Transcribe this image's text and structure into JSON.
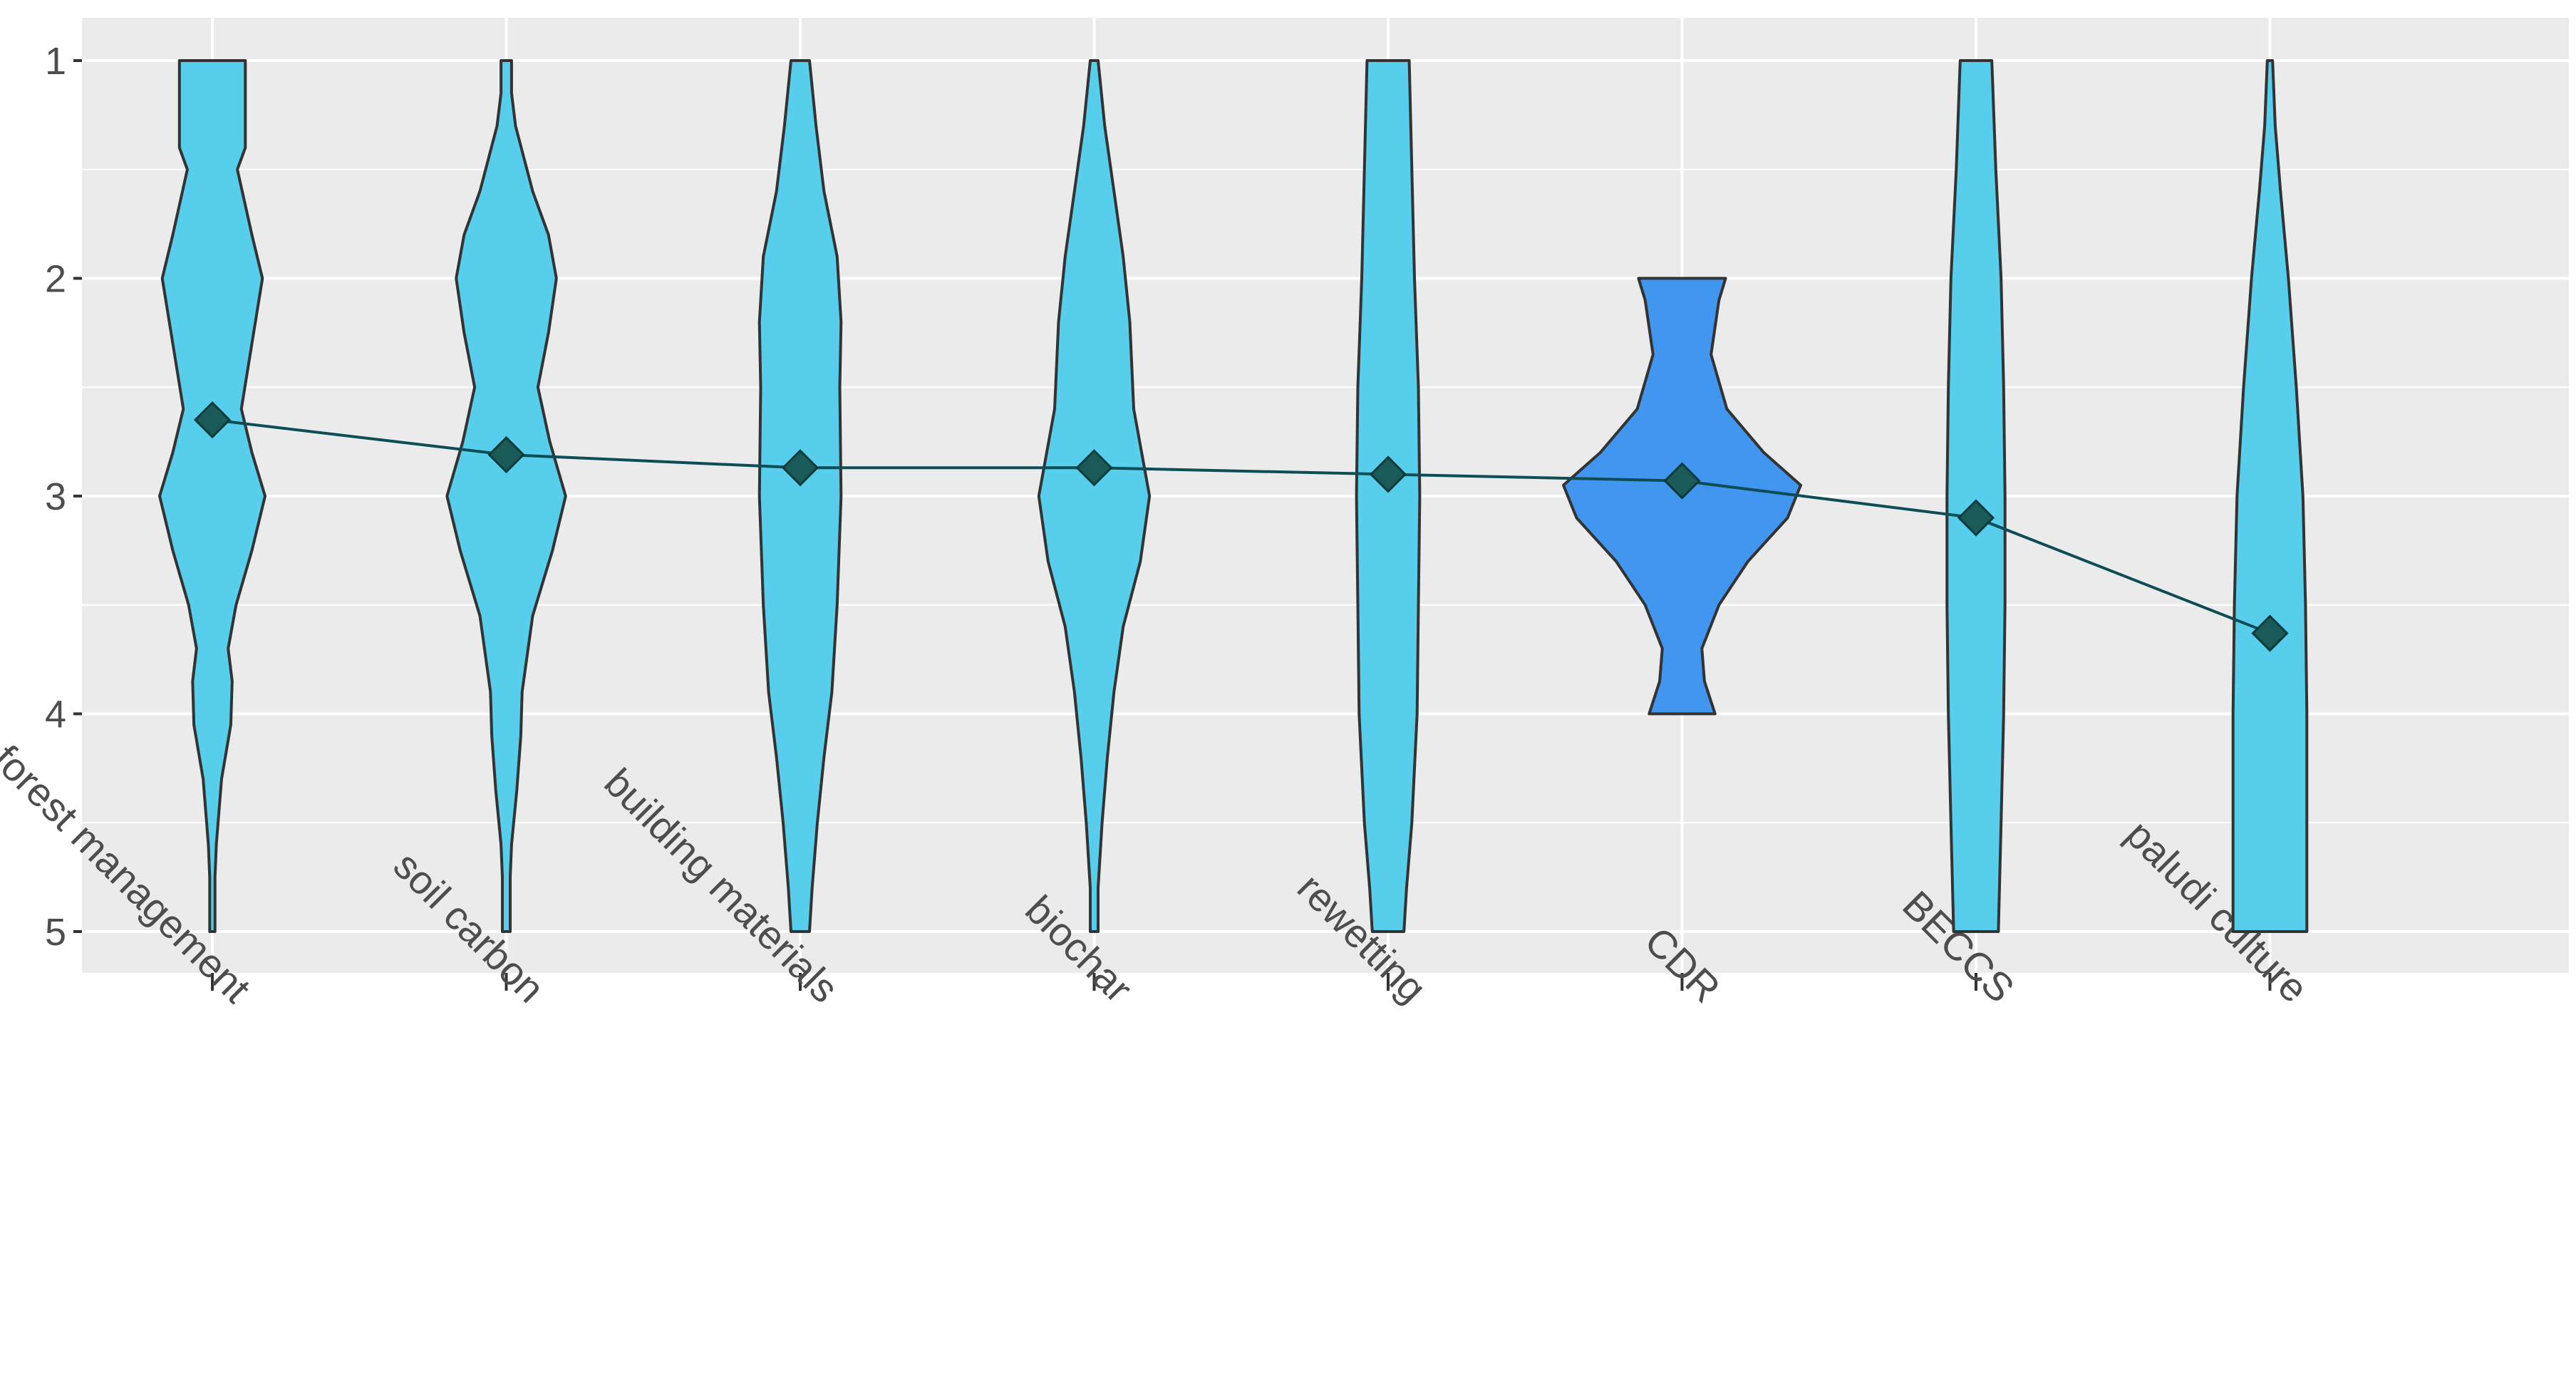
{
  "chart_data": {
    "type": "violin",
    "title": "",
    "xlabel": "",
    "ylabel": "",
    "y_reversed": true,
    "ylim": [
      1,
      5
    ],
    "yticks": [
      1,
      2,
      3,
      4,
      5
    ],
    "ytick_labels": [
      "1",
      "2",
      "3",
      "4",
      "5"
    ],
    "grid": true,
    "legend": "none",
    "categories": [
      "forest management",
      "soil carbon",
      "building materials",
      "biochar",
      "rewetting",
      "CDR",
      "BECCS",
      "paludi culture"
    ],
    "means": [
      2.65,
      2.81,
      2.87,
      2.87,
      2.9,
      2.93,
      3.1,
      3.63
    ],
    "fill_colors": [
      "#56CEEC",
      "#56CEEC",
      "#56CEEC",
      "#56CEEC",
      "#56CEEC",
      "#4196EF",
      "#56CEEC",
      "#56CEEC"
    ],
    "violins": [
      {
        "name": "forest management",
        "range": [
          1,
          5
        ],
        "profile": [
          [
            1.0,
            0.25
          ],
          [
            1.4,
            0.25
          ],
          [
            1.5,
            0.19
          ],
          [
            1.8,
            0.3
          ],
          [
            2.0,
            0.38
          ],
          [
            2.3,
            0.3
          ],
          [
            2.6,
            0.22
          ],
          [
            2.8,
            0.3
          ],
          [
            3.0,
            0.4
          ],
          [
            3.25,
            0.3
          ],
          [
            3.5,
            0.18
          ],
          [
            3.7,
            0.12
          ],
          [
            3.85,
            0.15
          ],
          [
            4.05,
            0.14
          ],
          [
            4.3,
            0.07
          ],
          [
            4.6,
            0.03
          ],
          [
            4.75,
            0.02
          ],
          [
            5.0,
            0.02
          ]
        ]
      },
      {
        "name": "soil carbon",
        "range": [
          1,
          5
        ],
        "profile": [
          [
            1.0,
            0.04
          ],
          [
            1.15,
            0.04
          ],
          [
            1.3,
            0.07
          ],
          [
            1.6,
            0.2
          ],
          [
            1.8,
            0.32
          ],
          [
            2.0,
            0.38
          ],
          [
            2.25,
            0.32
          ],
          [
            2.5,
            0.24
          ],
          [
            2.75,
            0.33
          ],
          [
            3.0,
            0.45
          ],
          [
            3.25,
            0.35
          ],
          [
            3.55,
            0.2
          ],
          [
            3.9,
            0.12
          ],
          [
            4.1,
            0.11
          ],
          [
            4.35,
            0.08
          ],
          [
            4.6,
            0.04
          ],
          [
            4.75,
            0.03
          ],
          [
            5.0,
            0.03
          ]
        ]
      },
      {
        "name": "building materials",
        "range": [
          1,
          5
        ],
        "profile": [
          [
            1.0,
            0.07
          ],
          [
            1.3,
            0.12
          ],
          [
            1.6,
            0.18
          ],
          [
            1.9,
            0.28
          ],
          [
            2.2,
            0.31
          ],
          [
            2.5,
            0.3
          ],
          [
            3.0,
            0.31
          ],
          [
            3.5,
            0.28
          ],
          [
            3.9,
            0.24
          ],
          [
            4.2,
            0.18
          ],
          [
            4.5,
            0.13
          ],
          [
            4.8,
            0.09
          ],
          [
            5.0,
            0.07
          ]
        ]
      },
      {
        "name": "biochar",
        "range": [
          1,
          5
        ],
        "profile": [
          [
            1.0,
            0.03
          ],
          [
            1.3,
            0.08
          ],
          [
            1.6,
            0.15
          ],
          [
            1.9,
            0.22
          ],
          [
            2.2,
            0.27
          ],
          [
            2.6,
            0.3
          ],
          [
            3.0,
            0.42
          ],
          [
            3.3,
            0.35
          ],
          [
            3.6,
            0.22
          ],
          [
            3.9,
            0.15
          ],
          [
            4.2,
            0.1
          ],
          [
            4.5,
            0.06
          ],
          [
            4.8,
            0.03
          ],
          [
            5.0,
            0.03
          ]
        ]
      },
      {
        "name": "rewetting",
        "range": [
          1,
          5
        ],
        "profile": [
          [
            1.0,
            0.16
          ],
          [
            1.5,
            0.18
          ],
          [
            2.0,
            0.2
          ],
          [
            2.5,
            0.23
          ],
          [
            3.0,
            0.24
          ],
          [
            3.5,
            0.23
          ],
          [
            4.0,
            0.22
          ],
          [
            4.5,
            0.18
          ],
          [
            4.8,
            0.14
          ],
          [
            5.0,
            0.12
          ]
        ]
      },
      {
        "name": "CDR",
        "range": [
          2,
          4
        ],
        "profile": [
          [
            2.0,
            0.33
          ],
          [
            2.1,
            0.28
          ],
          [
            2.35,
            0.22
          ],
          [
            2.6,
            0.34
          ],
          [
            2.8,
            0.62
          ],
          [
            2.95,
            0.9
          ],
          [
            3.1,
            0.8
          ],
          [
            3.3,
            0.5
          ],
          [
            3.5,
            0.28
          ],
          [
            3.7,
            0.15
          ],
          [
            3.85,
            0.17
          ],
          [
            4.0,
            0.25
          ]
        ]
      },
      {
        "name": "BECCS",
        "range": [
          1,
          5
        ],
        "profile": [
          [
            1.0,
            0.12
          ],
          [
            1.5,
            0.15
          ],
          [
            2.0,
            0.19
          ],
          [
            2.5,
            0.21
          ],
          [
            3.0,
            0.22
          ],
          [
            3.5,
            0.22
          ],
          [
            4.0,
            0.21
          ],
          [
            4.5,
            0.19
          ],
          [
            5.0,
            0.17
          ]
        ]
      },
      {
        "name": "paludi culture",
        "range": [
          1,
          5
        ],
        "profile": [
          [
            1.0,
            0.02
          ],
          [
            1.3,
            0.04
          ],
          [
            1.6,
            0.08
          ],
          [
            2.0,
            0.14
          ],
          [
            2.5,
            0.2
          ],
          [
            3.0,
            0.25
          ],
          [
            3.5,
            0.27
          ],
          [
            4.0,
            0.28
          ],
          [
            4.5,
            0.28
          ],
          [
            5.0,
            0.28
          ]
        ]
      }
    ]
  }
}
